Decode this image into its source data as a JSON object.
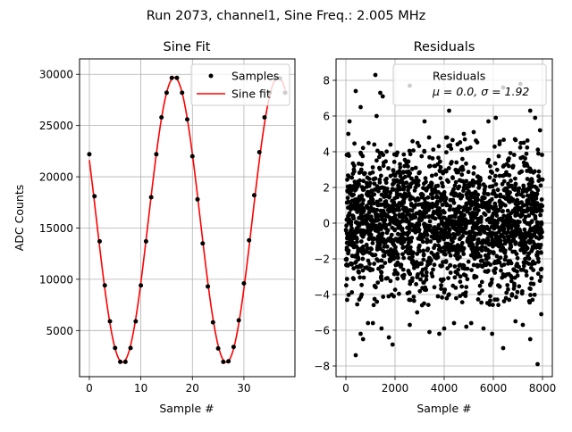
{
  "suptitle": "Run 2073, channel1, Sine Freq.: 2.005 MHz",
  "chart_data": [
    {
      "type": "scatter",
      "title": "Sine Fit",
      "xlabel": "Sample #",
      "ylabel": "ADC Counts",
      "xlim": [
        -1.9,
        39.9
      ],
      "ylim": [
        500,
        31500
      ],
      "xticks": [
        0,
        10,
        20,
        30
      ],
      "yticks": [
        5000,
        10000,
        15000,
        20000,
        25000,
        30000
      ],
      "grid": true,
      "legend_position": "top-right",
      "series": [
        {
          "name": "Samples",
          "kind": "points",
          "color": "#000000",
          "x": [
            0,
            1,
            2,
            3,
            4,
            5,
            6,
            7,
            8,
            9,
            10,
            11,
            12,
            13,
            14,
            15,
            16,
            17,
            18,
            19,
            20,
            21,
            22,
            23,
            24,
            25,
            26,
            27,
            28,
            29,
            30,
            31,
            32,
            33,
            34,
            35,
            36,
            37,
            38
          ],
          "y": [
            22200,
            18100,
            13700,
            9400,
            5900,
            3300,
            1950,
            1950,
            3300,
            5900,
            9400,
            13700,
            18000,
            22200,
            25800,
            28200,
            29650,
            29650,
            28200,
            25600,
            22000,
            17800,
            13500,
            9300,
            5800,
            3250,
            1950,
            2000,
            3400,
            6000,
            9600,
            13800,
            18200,
            22400,
            25800,
            28200,
            29600,
            29600,
            28200
          ]
        },
        {
          "name": "Sine fit",
          "kind": "line",
          "color": "#ff0000",
          "model": {
            "offset": 15800,
            "amplitude": 13900,
            "period": 20.15,
            "peak_sample": 16.5
          }
        }
      ]
    },
    {
      "type": "scatter",
      "title": "Residuals",
      "xlabel": "Sample #",
      "ylabel": "",
      "xlim": [
        -400,
        8400
      ],
      "ylim": [
        -8.6,
        9.2
      ],
      "xticks": [
        0,
        2000,
        4000,
        6000,
        8000
      ],
      "yticks": [
        -8,
        -6,
        -4,
        -2,
        0,
        2,
        4,
        6,
        8
      ],
      "grid": true,
      "legend_position": "top-right",
      "legend_lines": [
        "Residuals",
        "μ = 0.0, σ = 1.92"
      ],
      "series": [
        {
          "name": "Residuals",
          "color": "#000000",
          "n_points": 8000,
          "mean": 0.0,
          "std": 1.92,
          "outliers": [
            [
              100,
              5.0
            ],
            [
              150,
              5.7
            ],
            [
              400,
              7.4
            ],
            [
              600,
              6.5
            ],
            [
              1200,
              8.3
            ],
            [
              1250,
              6.0
            ],
            [
              1400,
              7.3
            ],
            [
              1500,
              7.1
            ],
            [
              2600,
              7.7
            ],
            [
              3200,
              5.7
            ],
            [
              4200,
              6.3
            ],
            [
              4800,
              5.0
            ],
            [
              5200,
              5.1
            ],
            [
              5800,
              5.7
            ],
            [
              6100,
              5.9
            ],
            [
              6400,
              7.6
            ],
            [
              7100,
              7.8
            ],
            [
              7500,
              6.3
            ],
            [
              7700,
              5.9
            ],
            [
              7900,
              5.2
            ],
            [
              50,
              -4.3
            ],
            [
              400,
              -7.4
            ],
            [
              600,
              -6.2
            ],
            [
              700,
              -6.5
            ],
            [
              900,
              -5.6
            ],
            [
              1100,
              -5.6
            ],
            [
              1450,
              -5.9
            ],
            [
              1750,
              -6.4
            ],
            [
              1900,
              -6.8
            ],
            [
              2600,
              -5.7
            ],
            [
              2900,
              -5.0
            ],
            [
              3100,
              -4.6
            ],
            [
              3400,
              -6.1
            ],
            [
              3800,
              -6.2
            ],
            [
              4000,
              -5.9
            ],
            [
              4400,
              -5.6
            ],
            [
              4900,
              -5.8
            ],
            [
              5100,
              -5.6
            ],
            [
              5600,
              -5.9
            ],
            [
              5950,
              -6.2
            ],
            [
              6400,
              -7.0
            ],
            [
              6900,
              -5.5
            ],
            [
              7200,
              -5.7
            ],
            [
              7500,
              -6.5
            ],
            [
              7800,
              -7.9
            ],
            [
              7950,
              -5.1
            ]
          ]
        }
      ]
    }
  ]
}
